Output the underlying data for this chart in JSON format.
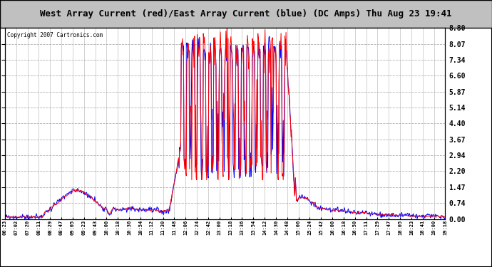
{
  "title": "West Array Current (red)/East Array Current (blue) (DC Amps) Thu Aug 23 19:41",
  "copyright": "Copyright 2007 Cartronics.com",
  "yticks": [
    0.0,
    0.74,
    1.47,
    2.2,
    2.94,
    3.67,
    4.4,
    5.14,
    5.87,
    6.6,
    7.34,
    8.07,
    8.8
  ],
  "ylim": [
    0.0,
    8.8
  ],
  "x_labels": [
    "06:23",
    "07:02",
    "07:20",
    "08:11",
    "08:29",
    "08:47",
    "09:05",
    "09:23",
    "09:43",
    "10:00",
    "10:18",
    "10:36",
    "10:54",
    "11:12",
    "11:30",
    "11:48",
    "12:06",
    "12:24",
    "12:42",
    "13:00",
    "13:18",
    "13:36",
    "13:54",
    "14:12",
    "14:30",
    "14:48",
    "15:06",
    "15:24",
    "15:42",
    "16:00",
    "16:18",
    "16:50",
    "17:11",
    "17:29",
    "17:47",
    "18:05",
    "18:23",
    "18:41",
    "19:00",
    "19:18"
  ],
  "red_color": "#ff0000",
  "blue_color": "#0000ff",
  "bg_color": "#ffffff",
  "grid_color": "#b0b0b0",
  "title_bg": "#c0c0c0",
  "line_width": 0.7
}
